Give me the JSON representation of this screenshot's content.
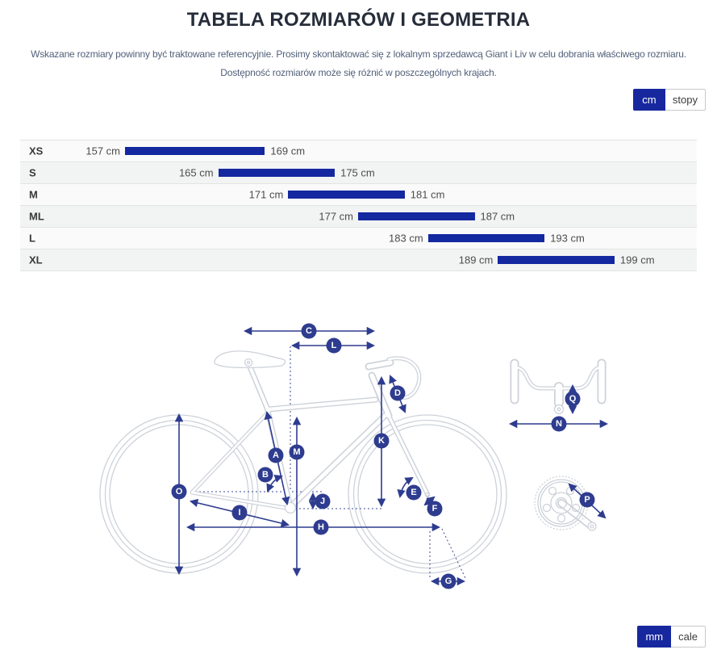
{
  "page": {
    "title": "TABELA ROZMIARÓW I GEOMETRIA"
  },
  "intro": {
    "line1": "Wskazane rozmiary powinny być traktowane referencyjnie. Prosimy skontaktować się z lokalnym sprzedawcą Giant i Liv w celu dobrania właściwego rozmiaru.",
    "line2": "Dostępność rozmiarów może się różnić w poszczególnych krajach."
  },
  "toggles": {
    "height_units": [
      {
        "label": "cm",
        "active": true
      },
      {
        "label": "stopy",
        "active": false
      }
    ],
    "geometry_units": [
      {
        "label": "mm",
        "active": true
      },
      {
        "label": "cale",
        "active": false
      }
    ]
  },
  "size_table": {
    "unit": "cm",
    "scale": {
      "min_cm": 157,
      "max_cm": 199
    },
    "rows": [
      {
        "size": "XS",
        "from_cm": 157,
        "to_cm": 169,
        "from_label": "157 cm",
        "to_label": "169 cm"
      },
      {
        "size": "S",
        "from_cm": 165,
        "to_cm": 175,
        "from_label": "165 cm",
        "to_label": "175 cm"
      },
      {
        "size": "M",
        "from_cm": 171,
        "to_cm": 181,
        "from_label": "171 cm",
        "to_label": "181 cm"
      },
      {
        "size": "ML",
        "from_cm": 177,
        "to_cm": 187,
        "from_label": "177 cm",
        "to_label": "187 cm"
      },
      {
        "size": "L",
        "from_cm": 183,
        "to_cm": 193,
        "from_label": "183 cm",
        "to_label": "193 cm"
      },
      {
        "size": "XL",
        "from_cm": 189,
        "to_cm": 199,
        "from_label": "189 cm",
        "to_label": "199 cm"
      }
    ]
  },
  "diagram": {
    "letters": {
      "A": "A",
      "B": "B",
      "C": "C",
      "D": "D",
      "E": "E",
      "F": "F",
      "G": "G",
      "H": "H",
      "I": "I",
      "J": "J",
      "K": "K",
      "L": "L",
      "M": "M",
      "N": "N",
      "O": "O",
      "P": "P",
      "Q": "Q"
    }
  },
  "colors": {
    "navy_accent": "#1428a0",
    "diagram_navy": "#2e3c8f",
    "outline_gray": "#cdd2d9"
  }
}
